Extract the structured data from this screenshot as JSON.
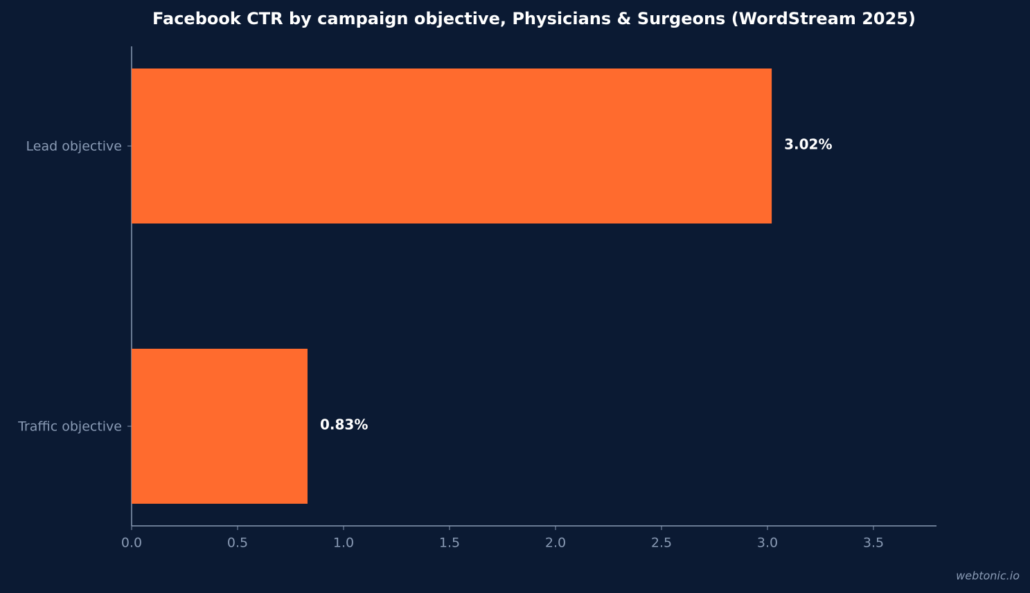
{
  "chart_data": {
    "type": "bar",
    "orientation": "horizontal",
    "title": "Facebook CTR by campaign objective, Physicians & Surgeons (WordStream 2025)",
    "categories": [
      "Lead objective",
      "Traffic objective"
    ],
    "values": [
      3.02,
      0.83
    ],
    "value_labels": [
      "3.02%",
      "0.83%"
    ],
    "color": "#ff6b2e",
    "xlim": [
      0,
      3.8
    ],
    "xticks": [
      {
        "value": 0,
        "label": "0.0"
      },
      0.5,
      {
        "value": 1,
        "label": "1.0"
      },
      1.5,
      {
        "value": 2,
        "label": "2.0"
      },
      2.5,
      {
        "value": 3,
        "label": "3.0"
      },
      3.5
    ],
    "grid": false,
    "watermark": "webtonic.io"
  }
}
